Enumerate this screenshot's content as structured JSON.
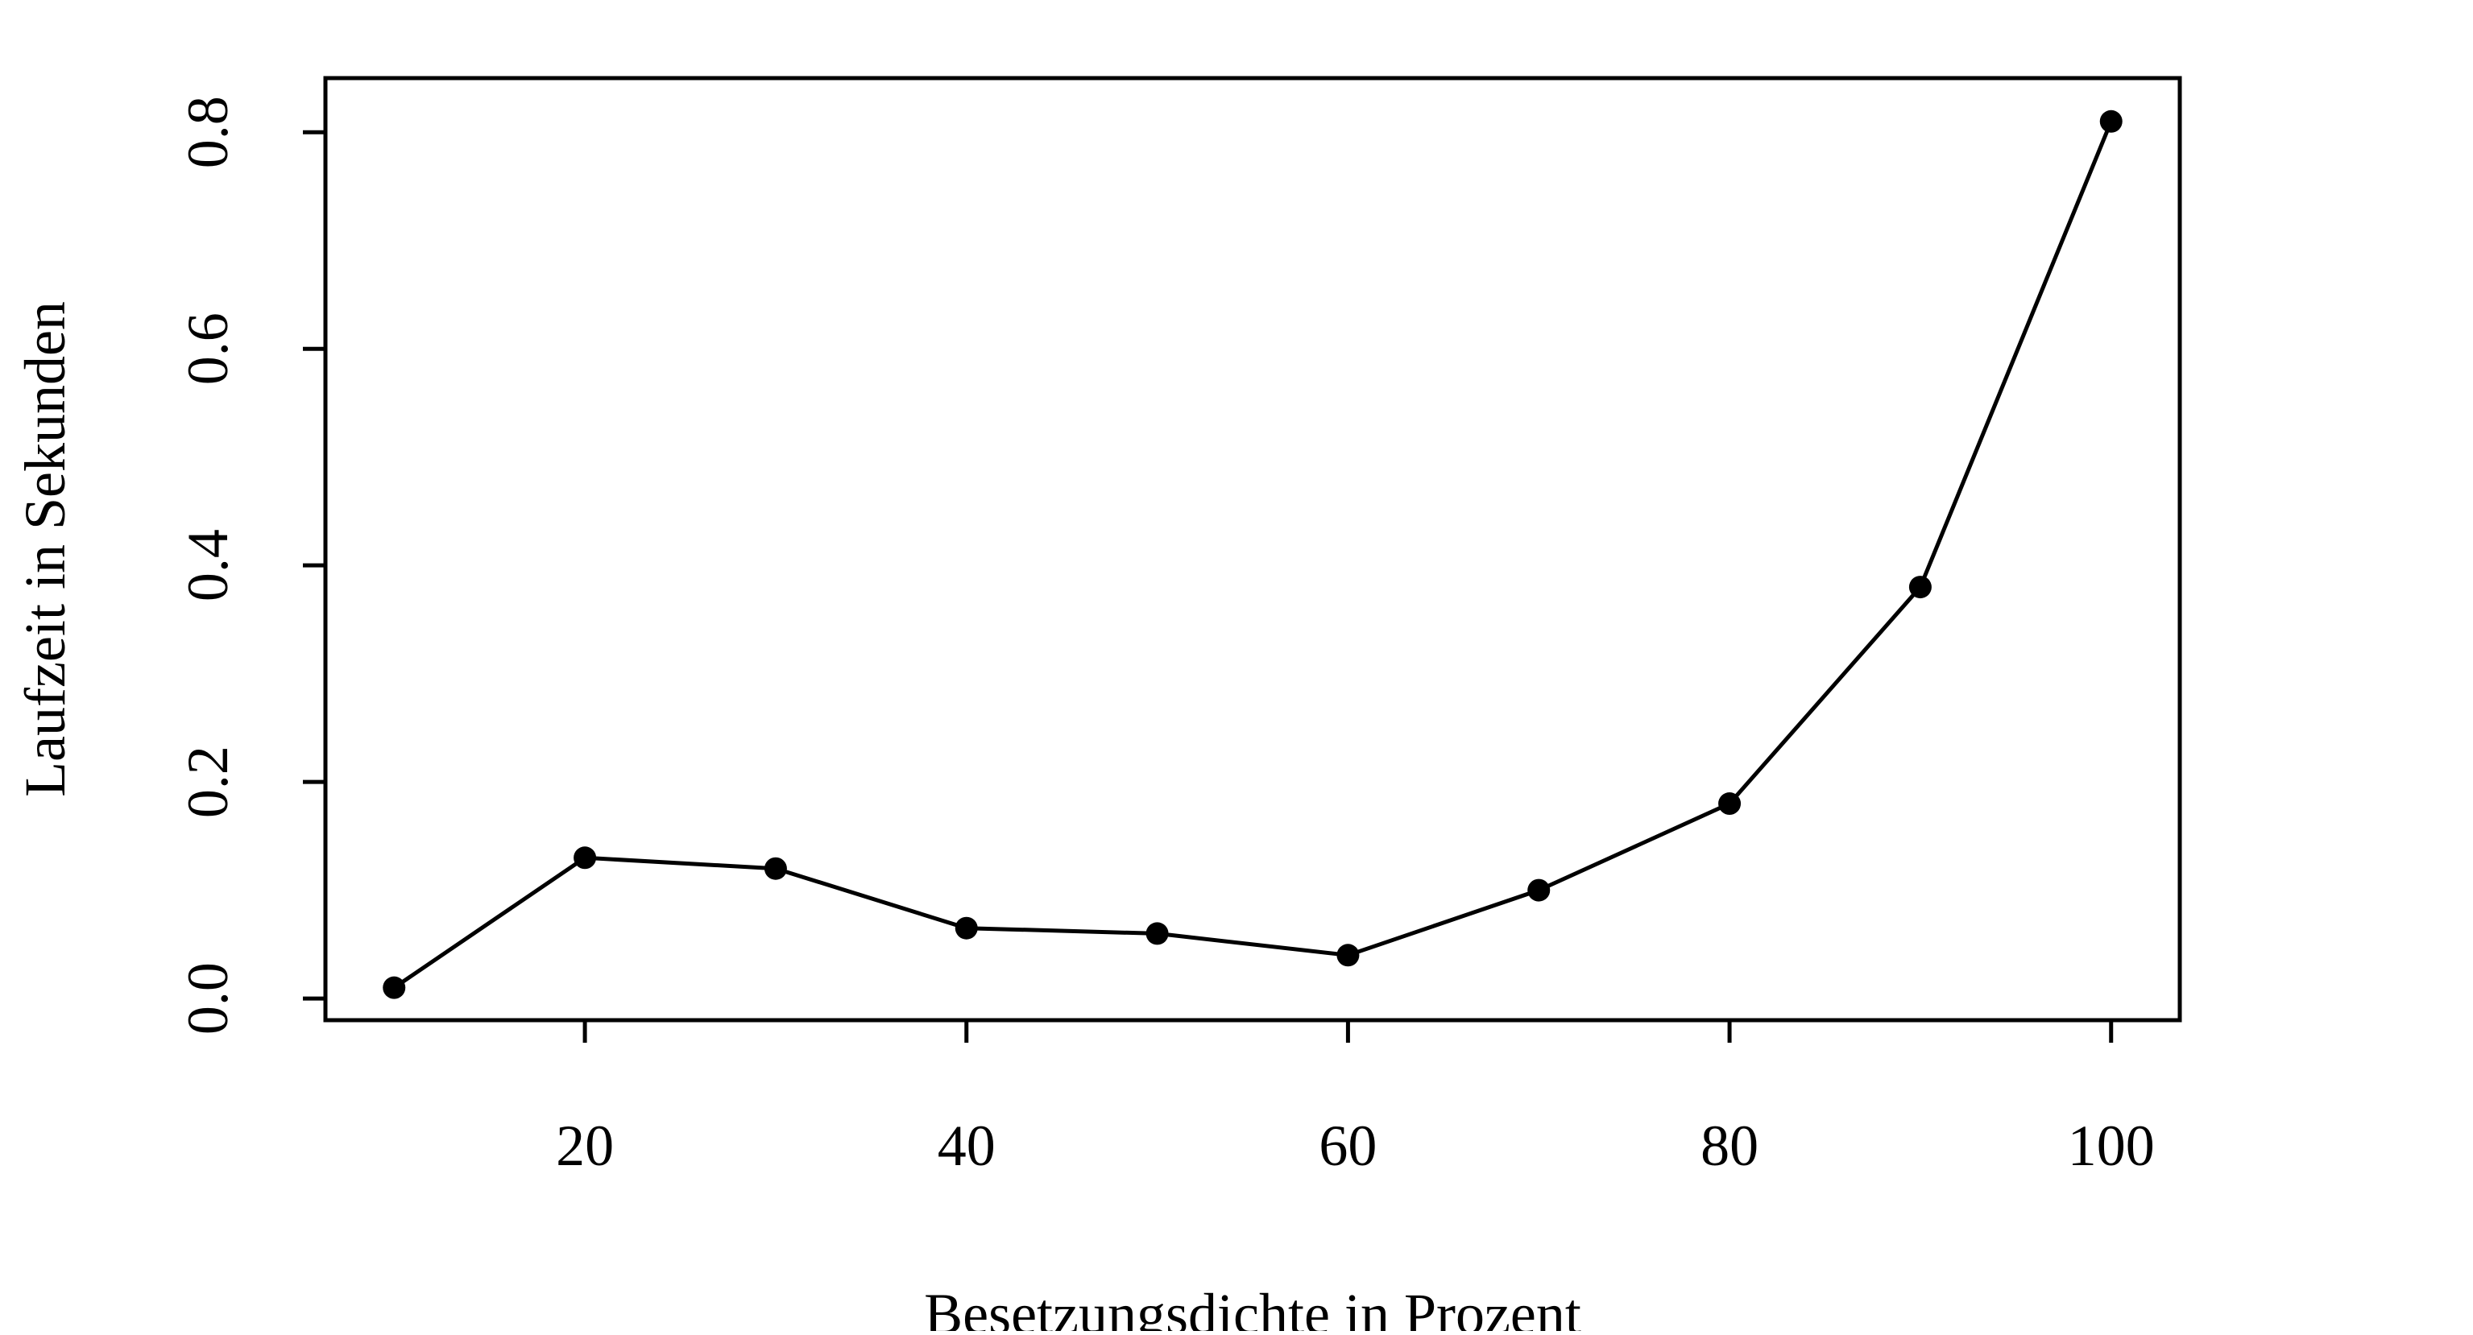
{
  "chart_data": {
    "type": "line",
    "title": "",
    "xlabel": "Besetzungsdichte in Prozent",
    "ylabel": "Laufzeit in Sekunden",
    "x": [
      10,
      20,
      30,
      40,
      50,
      60,
      70,
      80,
      90,
      100
    ],
    "series": [
      {
        "values": [
          0.01,
          0.13,
          0.12,
          0.065,
          0.06,
          0.04,
          0.1,
          0.18,
          0.38,
          0.81
        ]
      }
    ],
    "xlim": [
      6.4,
      103.6
    ],
    "ylim": [
      -0.02,
      0.85
    ],
    "x_ticks": [
      20,
      40,
      60,
      80,
      100
    ],
    "x_tick_labels": [
      "20",
      "40",
      "60",
      "80",
      "100"
    ],
    "y_ticks": [
      0.0,
      0.2,
      0.4,
      0.6,
      0.8
    ],
    "y_tick_labels": [
      "0.0",
      "0.2",
      "0.4",
      "0.6",
      "0.8"
    ],
    "grid": false,
    "legend": false,
    "marker": "filled-circle",
    "line_color": "#000000",
    "point_color": "#000000"
  }
}
